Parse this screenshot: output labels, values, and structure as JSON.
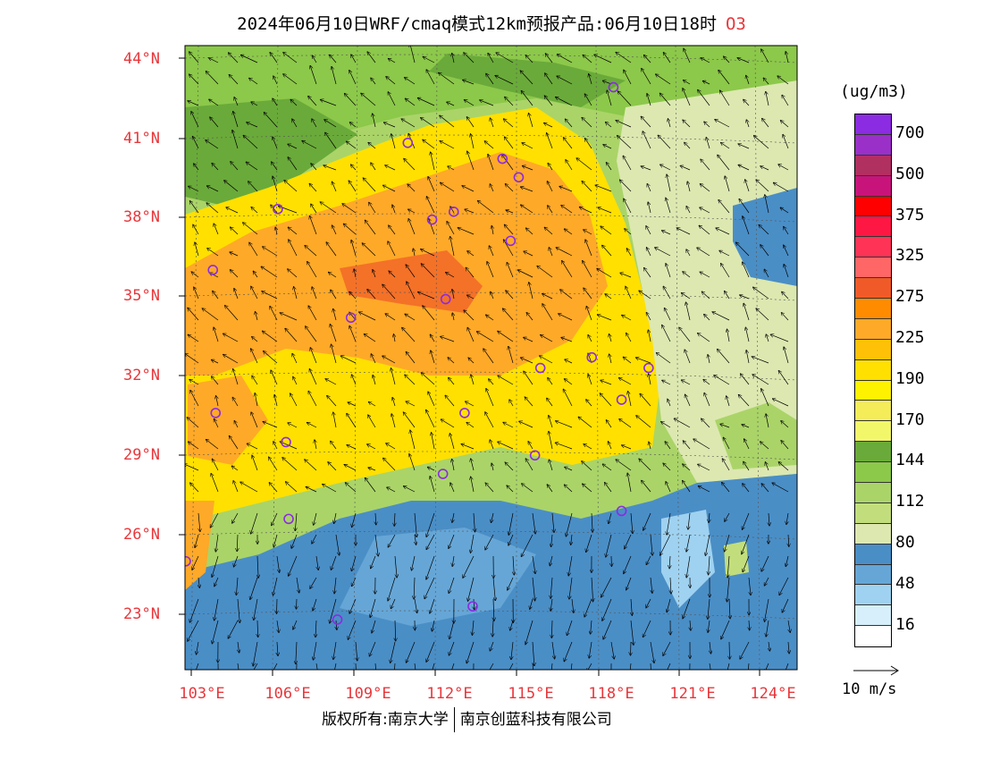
{
  "title": {
    "text": "2024年06月10日WRF/cmaq模式12km预报产品:06月10日18时",
    "pollutant": "O3"
  },
  "lat_labels": [
    "44°N",
    "41°N",
    "38°N",
    "35°N",
    "32°N",
    "29°N",
    "26°N",
    "23°N"
  ],
  "lon_labels": [
    "103°E",
    "106°E",
    "109°E",
    "112°E",
    "115°E",
    "118°E",
    "121°E",
    "124°E"
  ],
  "colorbar": {
    "unit": "(ug/m3)",
    "colors": [
      "#8b2be2",
      "#9a30c8",
      "#b03060",
      "#c8147a",
      "#ff0000",
      "#ff1744",
      "#ff3355",
      "#ff6666",
      "#f05a28",
      "#ff8c00",
      "#ffa928",
      "#ffc107",
      "#ffe000",
      "#fff200",
      "#f4ec58",
      "#f2f76a",
      "#6aaa3a",
      "#8cc84a",
      "#aad468",
      "#c2de7c",
      "#dce8b0",
      "#4a8ec6",
      "#66a6d6",
      "#9fd2f0",
      "#d6effa",
      "#ffffff"
    ],
    "labels": [
      "700",
      "500",
      "375",
      "325",
      "275",
      "225",
      "190",
      "170",
      "144",
      "112",
      "80",
      "48",
      "16"
    ]
  },
  "vector_scale": {
    "label": "10 m/s"
  },
  "footer": {
    "copyright": "版权所有:南京大学",
    "company": "南京创蓝科技有限公司"
  },
  "map": {
    "region": "East/Southeast China",
    "fields": [
      {
        "name": "north-green",
        "color": "#8cc84a"
      },
      {
        "name": "central-orange",
        "color": "#ffa928"
      },
      {
        "name": "yellow",
        "color": "#ffe000"
      },
      {
        "name": "coast-light",
        "color": "#dce8b0"
      },
      {
        "name": "south-blue",
        "color": "#4a8ec6"
      }
    ],
    "stations": [
      {
        "lon": 118.6,
        "lat": 42.9
      },
      {
        "lon": 111.0,
        "lat": 40.8
      },
      {
        "lon": 114.5,
        "lat": 40.2
      },
      {
        "lon": 115.1,
        "lat": 39.5
      },
      {
        "lon": 106.2,
        "lat": 38.3
      },
      {
        "lon": 111.9,
        "lat": 37.9
      },
      {
        "lon": 112.7,
        "lat": 38.2
      },
      {
        "lon": 114.8,
        "lat": 37.1
      },
      {
        "lon": 103.8,
        "lat": 36.0
      },
      {
        "lon": 112.4,
        "lat": 34.9
      },
      {
        "lon": 108.9,
        "lat": 34.2
      },
      {
        "lon": 117.8,
        "lat": 32.7
      },
      {
        "lon": 115.9,
        "lat": 32.3
      },
      {
        "lon": 119.9,
        "lat": 32.3
      },
      {
        "lon": 118.9,
        "lat": 31.1
      },
      {
        "lon": 113.1,
        "lat": 30.6
      },
      {
        "lon": 103.9,
        "lat": 30.6
      },
      {
        "lon": 106.5,
        "lat": 29.5
      },
      {
        "lon": 115.7,
        "lat": 29.0
      },
      {
        "lon": 112.3,
        "lat": 28.3
      },
      {
        "lon": 106.6,
        "lat": 26.6
      },
      {
        "lon": 118.9,
        "lat": 26.9
      },
      {
        "lon": 102.8,
        "lat": 25.0
      },
      {
        "lon": 113.4,
        "lat": 23.3
      },
      {
        "lon": 108.4,
        "lat": 22.8
      }
    ]
  }
}
